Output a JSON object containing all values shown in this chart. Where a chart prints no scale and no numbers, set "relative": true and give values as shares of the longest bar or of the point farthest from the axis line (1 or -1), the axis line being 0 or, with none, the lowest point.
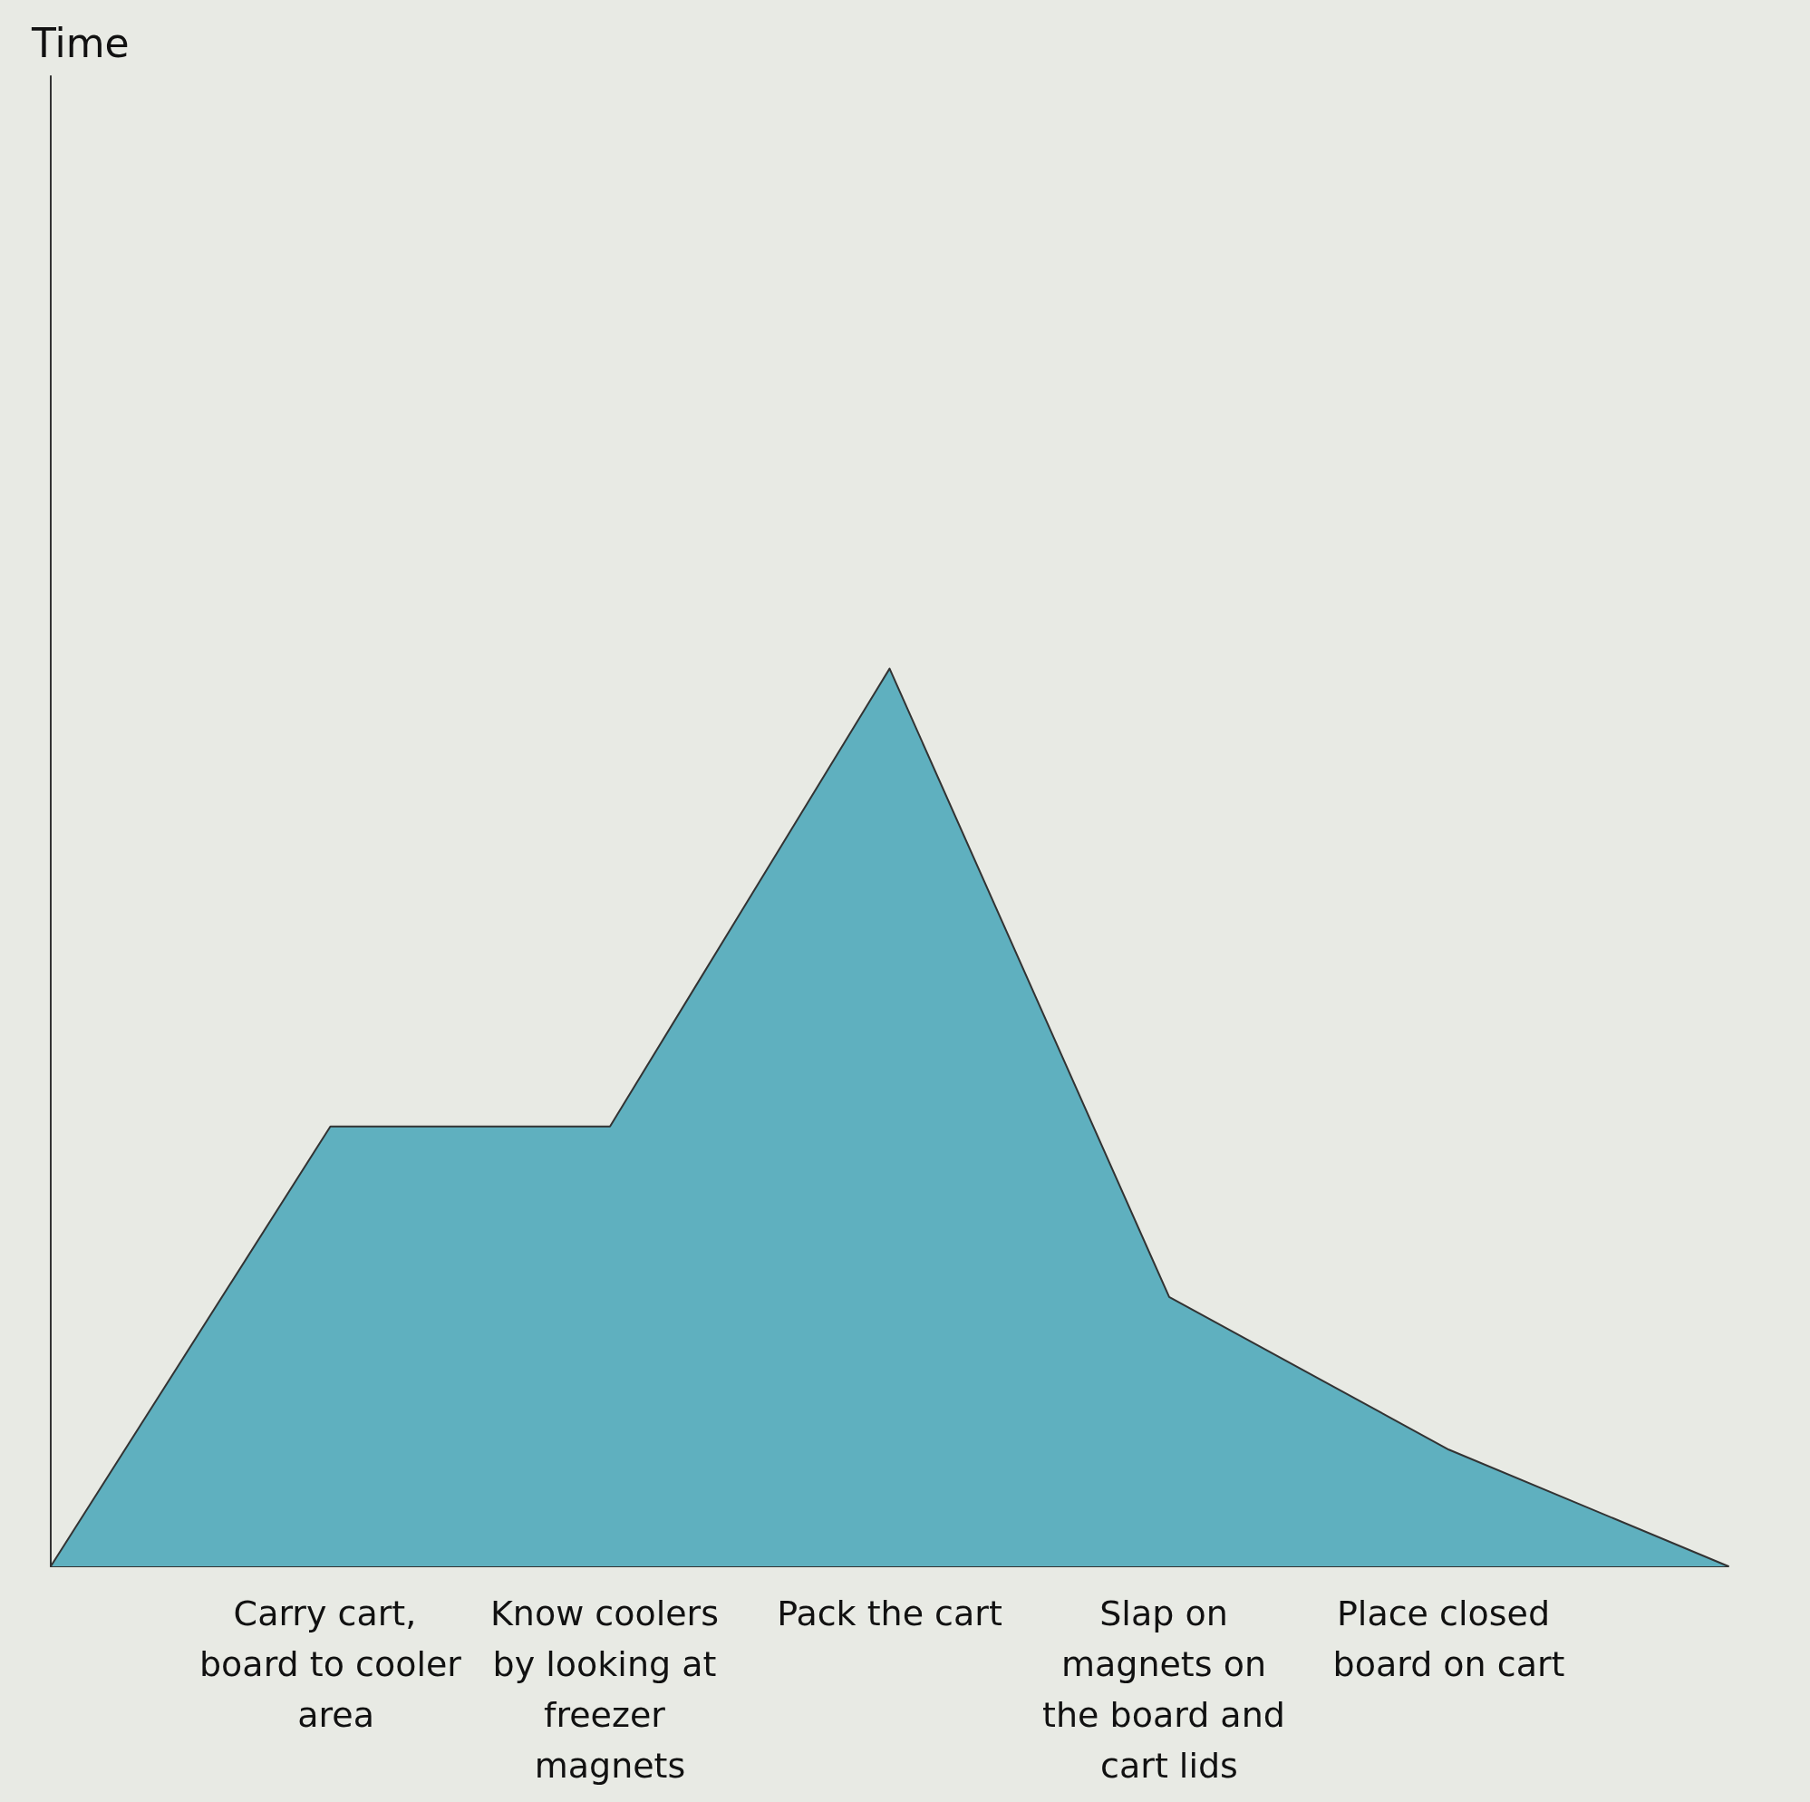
{
  "chart_data": {
    "type": "area",
    "annotations": [
      "Time"
    ],
    "relative": true,
    "grid": false,
    "marker": "none",
    "categories": [
      null,
      "Carry cart, board to cooler area",
      "Know coolers by looking at freezer magnets",
      "Pack the cart",
      "Slap on magnets on the board and cart lids",
      "Place closed board on cart",
      null
    ],
    "series": [
      {
        "color": "#5fb0bf",
        "values": [
          0,
          0.49,
          0.49,
          1,
          0.3,
          0.13,
          0
        ]
      }
    ]
  }
}
